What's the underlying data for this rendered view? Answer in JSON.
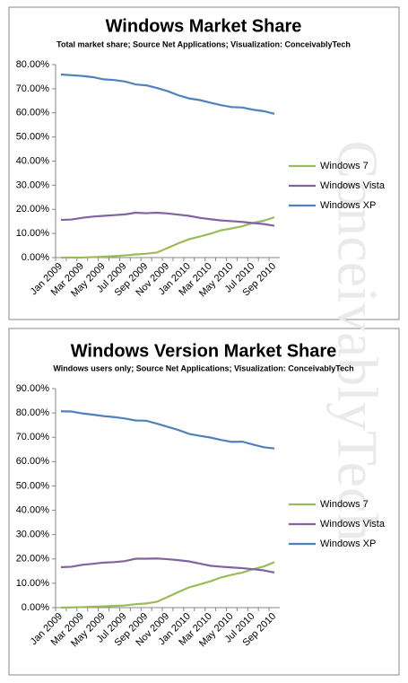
{
  "watermark": "ConceivablyTech",
  "chart_data": [
    {
      "type": "line",
      "title": "Windows Market Share",
      "subtitle": "Total market share; Source Net Applications; Visualization: ConceivablyTech",
      "categories": [
        "Jan 2009",
        null,
        "Mar 2009",
        null,
        "May 2009",
        null,
        "Jul 2009",
        null,
        "Sep 2009",
        null,
        "Nov 2009",
        null,
        "Jan 2010",
        null,
        "Mar 2010",
        null,
        "May 2010",
        null,
        "Jul 2010",
        null,
        "Sep 2010"
      ],
      "series": [
        {
          "name": "Windows 7",
          "color": "#9bbb59",
          "values": [
            0,
            0,
            0,
            0.2,
            0.4,
            0.6,
            0.9,
            1.3,
            1.6,
            2.1,
            4.0,
            5.9,
            7.6,
            8.7,
            9.9,
            11.3,
            12.1,
            13.0,
            14.4,
            15.3,
            16.7
          ]
        },
        {
          "name": "Windows Vista",
          "color": "#8064a2",
          "values": [
            15.6,
            15.8,
            16.5,
            17.0,
            17.3,
            17.6,
            17.9,
            18.6,
            18.4,
            18.6,
            18.3,
            17.8,
            17.3,
            16.5,
            15.9,
            15.4,
            15.1,
            14.8,
            14.3,
            13.9,
            13.2
          ]
        },
        {
          "name": "Windows XP",
          "color": "#4f81bd",
          "values": [
            75.9,
            75.6,
            75.3,
            74.8,
            73.9,
            73.6,
            73.0,
            71.8,
            71.4,
            70.3,
            69.0,
            67.3,
            66.0,
            65.3,
            64.2,
            63.2,
            62.4,
            62.2,
            61.3,
            60.7,
            59.6
          ]
        }
      ],
      "ylim": [
        0,
        80
      ],
      "yticks": [
        {
          "value": 0,
          "label": "0.00%"
        },
        {
          "value": 10,
          "label": "10.00%"
        },
        {
          "value": 20,
          "label": "20.00%"
        },
        {
          "value": 30,
          "label": "30.00%"
        },
        {
          "value": 40,
          "label": "40.00%"
        },
        {
          "value": 50,
          "label": "50.00%"
        },
        {
          "value": 60,
          "label": "60.00%"
        },
        {
          "value": 70,
          "label": "70.00%"
        },
        {
          "value": 80,
          "label": "80.00%"
        }
      ],
      "grid": false,
      "legend": "right"
    },
    {
      "type": "line",
      "title": "Windows Version Market Share",
      "subtitle": "Windows users only; Source Net Applications; Visualization: ConceivablyTech",
      "categories": [
        "Jan 2009",
        null,
        "Mar 2009",
        null,
        "May 2009",
        null,
        "Jul 2009",
        null,
        "Sep 2009",
        null,
        "Nov 2009",
        null,
        "Jan 2010",
        null,
        "Mar 2010",
        null,
        "May 2010",
        null,
        "Jul 2010",
        null,
        "Sep 2010"
      ],
      "series": [
        {
          "name": "Windows 7",
          "color": "#9bbb59",
          "values": [
            0,
            0.1,
            0.2,
            0.4,
            0.5,
            0.7,
            0.9,
            1.4,
            1.7,
            2.4,
            4.4,
            6.4,
            8.3,
            9.5,
            10.8,
            12.4,
            13.5,
            14.4,
            15.8,
            16.9,
            18.7
          ]
        },
        {
          "name": "Windows Vista",
          "color": "#8064a2",
          "values": [
            16.6,
            16.8,
            17.6,
            18.0,
            18.5,
            18.7,
            19.1,
            20.1,
            20.1,
            20.2,
            19.9,
            19.5,
            19.0,
            18.1,
            17.2,
            16.8,
            16.5,
            16.2,
            15.8,
            15.3,
            14.4
          ]
        },
        {
          "name": "Windows XP",
          "color": "#4f81bd",
          "values": [
            80.7,
            80.6,
            79.8,
            79.3,
            78.7,
            78.3,
            77.7,
            76.9,
            76.8,
            75.6,
            74.3,
            73.0,
            71.4,
            70.6,
            69.9,
            68.9,
            68.1,
            68.2,
            67.0,
            65.9,
            65.4
          ]
        }
      ],
      "ylim": [
        0,
        90
      ],
      "yticks": [
        {
          "value": 0,
          "label": "0.00%"
        },
        {
          "value": 10,
          "label": "10.00%"
        },
        {
          "value": 20,
          "label": "20.00%"
        },
        {
          "value": 30,
          "label": "30.00%"
        },
        {
          "value": 40,
          "label": "40.00%"
        },
        {
          "value": 50,
          "label": "50.00%"
        },
        {
          "value": 60,
          "label": "60.00%"
        },
        {
          "value": 70,
          "label": "70.00%"
        },
        {
          "value": 80,
          "label": "80.00%"
        },
        {
          "value": 90,
          "label": "90.00%"
        }
      ],
      "grid": false,
      "legend": "right"
    }
  ]
}
